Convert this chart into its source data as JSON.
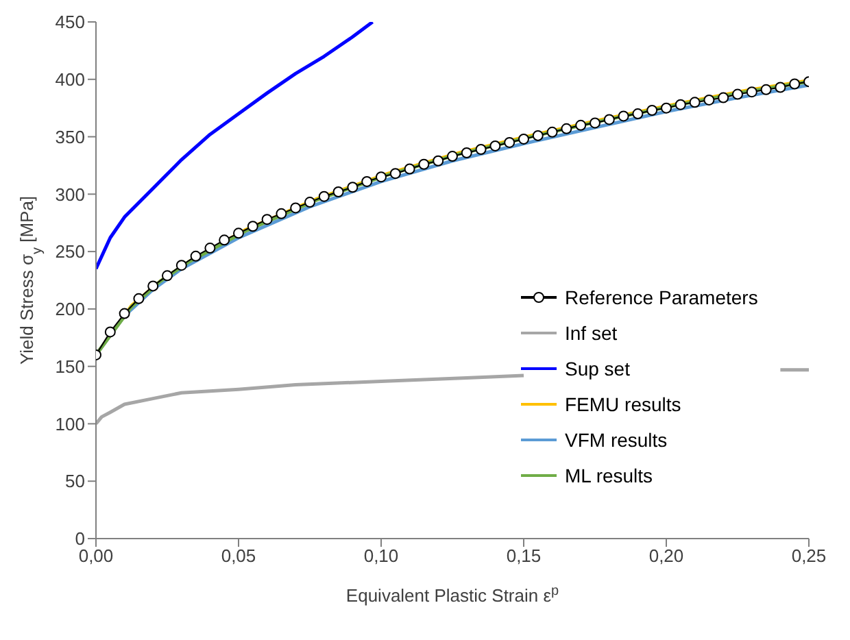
{
  "chart_data": {
    "type": "line",
    "xlabel": "Equivalent Plastic Strain ε$^{p}$",
    "ylabel": "Yield Stress σ$_{y}$ [MPa]",
    "xlim": [
      0,
      0.25
    ],
    "xticks": [
      {
        "value": 0,
        "label": "0,00"
      },
      {
        "value": 0.05,
        "label": "0,05"
      },
      {
        "value": 0.1,
        "label": "0,10"
      },
      {
        "value": 0.15,
        "label": "0,15"
      },
      {
        "value": 0.2,
        "label": "0,20"
      },
      {
        "value": 0.25,
        "label": "0,25"
      }
    ],
    "ylim": [
      0,
      450
    ],
    "yticks": [
      0,
      50,
      100,
      150,
      200,
      250,
      300,
      350,
      400,
      450
    ],
    "grid": false,
    "legend": "right",
    "line_style": "solid",
    "series": [
      {
        "name": "Reference Parameters",
        "color": "#000000",
        "marker": "circle",
        "x": [
          0,
          0.005,
          0.01,
          0.015,
          0.02,
          0.025,
          0.03,
          0.035,
          0.04,
          0.045,
          0.05,
          0.055,
          0.06,
          0.065,
          0.07,
          0.075,
          0.08,
          0.085,
          0.09,
          0.095,
          0.1,
          0.105,
          0.11,
          0.115,
          0.12,
          0.125,
          0.13,
          0.135,
          0.14,
          0.145,
          0.15,
          0.155,
          0.16,
          0.165,
          0.17,
          0.175,
          0.18,
          0.185,
          0.19,
          0.195,
          0.2,
          0.205,
          0.21,
          0.215,
          0.22,
          0.225,
          0.23,
          0.235,
          0.24,
          0.245,
          0.25
        ],
        "values": [
          160,
          180,
          196,
          209,
          220,
          229,
          238,
          246,
          253,
          260,
          266,
          272,
          278,
          283,
          288,
          293,
          298,
          302,
          306,
          311,
          315,
          318,
          322,
          326,
          329,
          333,
          336,
          339,
          342,
          345,
          348,
          351,
          354,
          357,
          360,
          362,
          365,
          368,
          370,
          373,
          375,
          378,
          380,
          382,
          384,
          387,
          389,
          391,
          393,
          396,
          398
        ]
      },
      {
        "name": "Inf set",
        "color": "#a6a6a6",
        "marker": "none",
        "x": [
          0,
          0.002,
          0.005,
          0.01,
          0.02,
          0.03,
          0.05,
          0.07,
          0.1,
          0.13,
          0.15,
          0.16,
          0.24,
          0.25
        ],
        "values": [
          100,
          106,
          110,
          117,
          122,
          127,
          130,
          134,
          137,
          140,
          142,
          null,
          147,
          147
        ]
      },
      {
        "name": "Sup set",
        "color": "#0000ff",
        "marker": "none",
        "x": [
          0,
          0.005,
          0.01,
          0.02,
          0.03,
          0.04,
          0.05,
          0.06,
          0.07,
          0.08,
          0.09,
          0.097
        ],
        "values": [
          235,
          262,
          280,
          305,
          330,
          352,
          370,
          388,
          405,
          420,
          437,
          450
        ]
      },
      {
        "name": "FEMU results",
        "color": "#ffc000",
        "marker": "none",
        "x": [
          0,
          0.0125,
          0.0225,
          0.0325,
          0.0525,
          0.0775,
          0.1025,
          0.1275,
          0.1525,
          0.1775,
          0.2025,
          0.2275,
          0.25
        ],
        "values": [
          160,
          203,
          224,
          241,
          269,
          296,
          318,
          336,
          351,
          365,
          378,
          390,
          399
        ]
      },
      {
        "name": "VFM results",
        "color": "#5b9bd5",
        "marker": "none",
        "x": [
          0,
          0.01,
          0.02,
          0.03,
          0.05,
          0.075,
          0.1,
          0.125,
          0.15,
          0.175,
          0.2,
          0.225,
          0.25
        ],
        "values": [
          160,
          194,
          217,
          235,
          262,
          289,
          311,
          329,
          344,
          358,
          372,
          384,
          395
        ]
      },
      {
        "name": "ML results",
        "color": "#70ad47",
        "marker": "none",
        "x": [
          0,
          0.0125,
          0.0225,
          0.0325,
          0.0525,
          0.0775,
          0.1025,
          0.1275,
          0.1525,
          0.1775,
          0.2025,
          0.2275,
          0.25
        ],
        "values": [
          160,
          202,
          224,
          241,
          268,
          295,
          317,
          335,
          350,
          364,
          377,
          389,
          398
        ]
      }
    ]
  }
}
